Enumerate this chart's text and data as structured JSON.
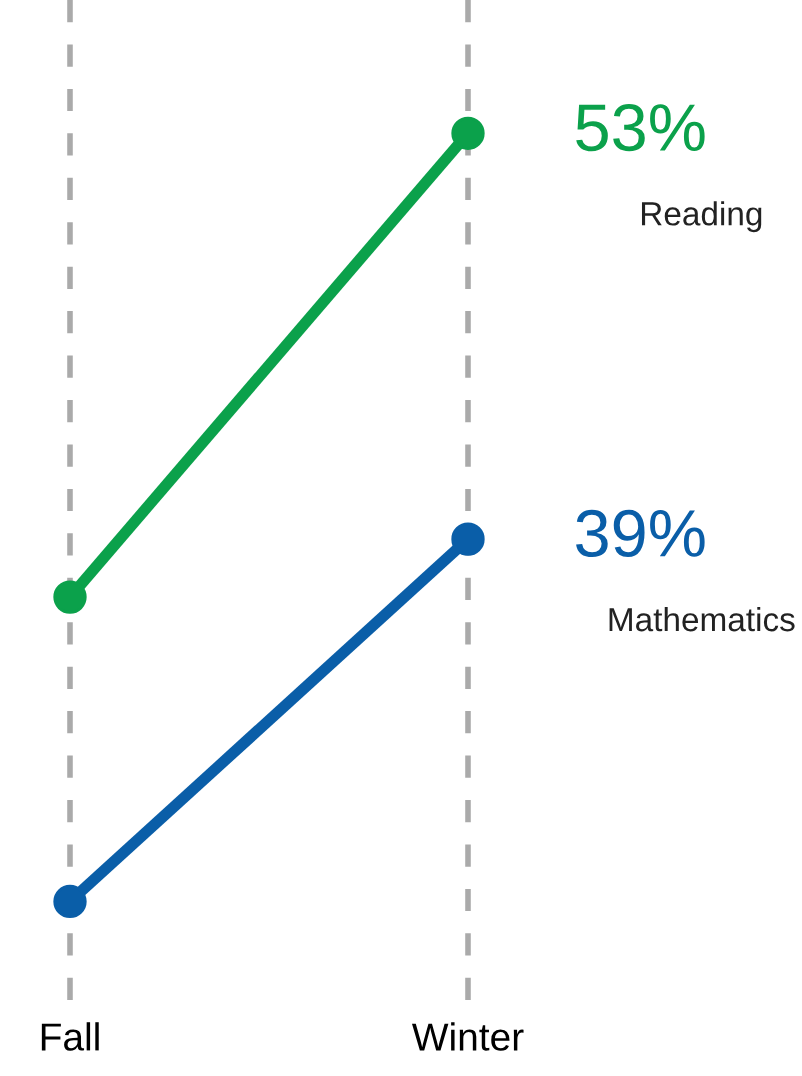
{
  "chart_data": {
    "type": "line",
    "categories": [
      "Fall",
      "Winter"
    ],
    "series": [
      {
        "name": "Reading",
        "color": "#0ba14b",
        "values": [
          37,
          53
        ],
        "value_labels": [
          null,
          "53%"
        ]
      },
      {
        "name": "Mathematics",
        "color": "#0a5ea8",
        "values": [
          26.5,
          39
        ],
        "value_labels": [
          null,
          "39%"
        ]
      }
    ],
    "ylim": [
      23.1,
      57.6
    ],
    "grid": "x",
    "marker": "circle",
    "line_style": "solid",
    "legend": false
  }
}
